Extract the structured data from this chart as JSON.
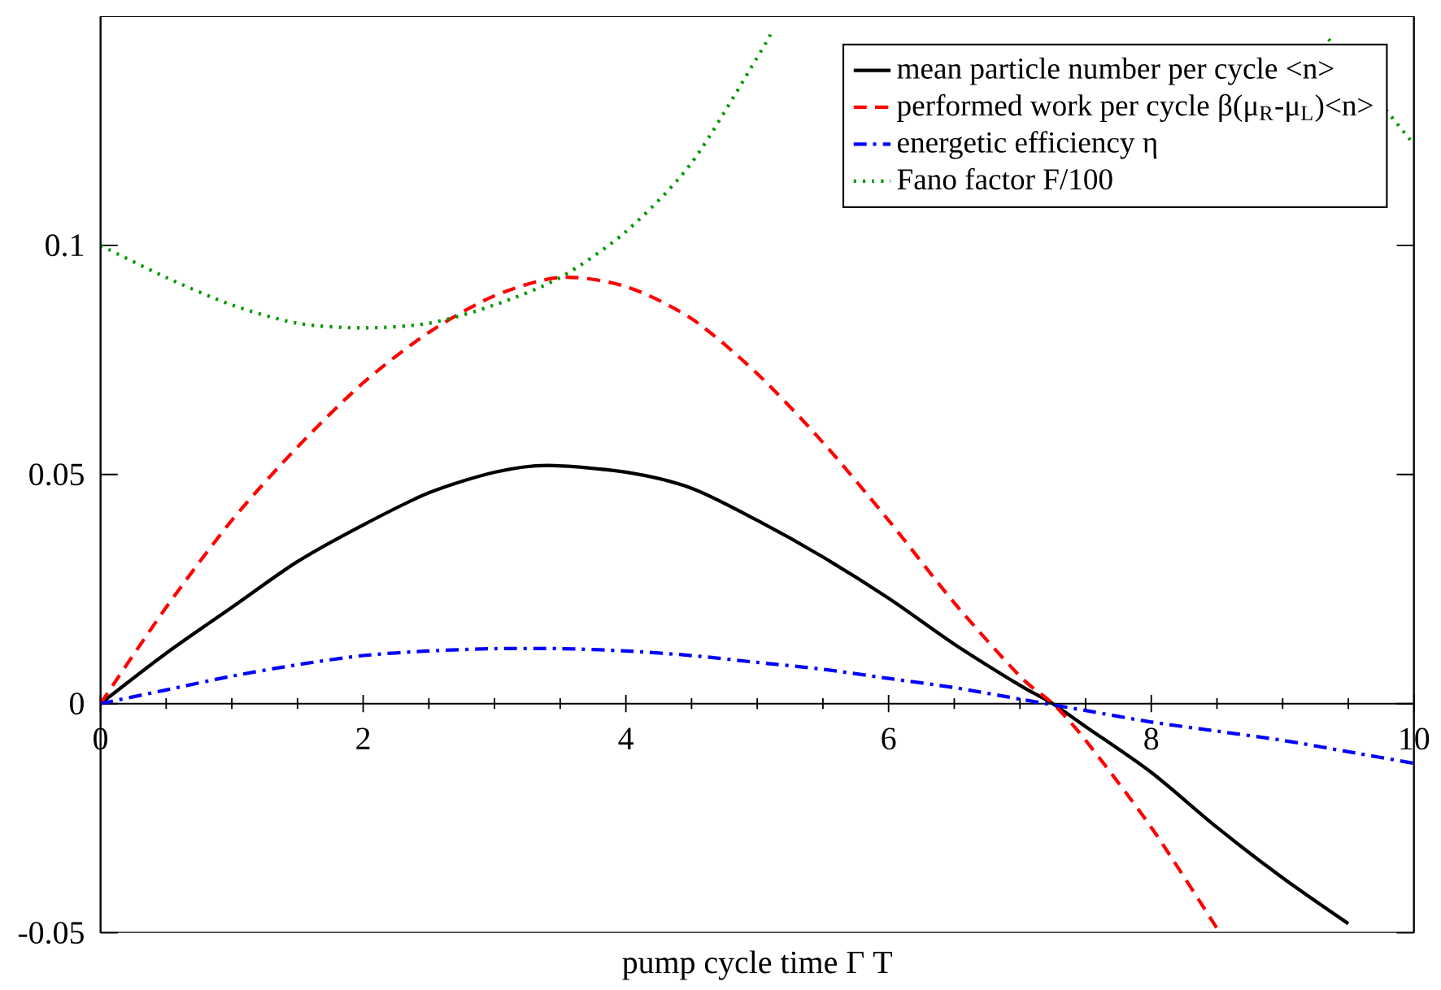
{
  "chart_data": {
    "type": "line",
    "xlabel": "pump cycle time Γ T",
    "xlim": [
      0,
      10
    ],
    "ylim": [
      -0.05,
      0.15
    ],
    "xticks": [
      0,
      2,
      4,
      6,
      8,
      10
    ],
    "yticks": [
      -0.05,
      0,
      0.05,
      0.1
    ],
    "legend": "top right",
    "grid": false,
    "series": [
      {
        "name": "mean particle number per cycle <n>",
        "color": "#000000",
        "line_style": "solid",
        "x": [
          0,
          0.5,
          1,
          1.5,
          2,
          2.5,
          3,
          3.4,
          4,
          4.5,
          5,
          5.5,
          6,
          6.5,
          7,
          7.25,
          7.5,
          8,
          8.5,
          9,
          9.5
        ],
        "values": [
          0,
          0.011,
          0.021,
          0.031,
          0.039,
          0.046,
          0.0505,
          0.052,
          0.0505,
          0.047,
          0.04,
          0.032,
          0.023,
          0.013,
          0.004,
          0,
          -0.005,
          -0.015,
          -0.027,
          -0.038,
          -0.048
        ]
      },
      {
        "name": "performed work per cycle β(μ$_{R}$-μ$_{L}$)<n>",
        "color": "#ff0000",
        "line_style": "dashed",
        "x": [
          0,
          0.5,
          1,
          1.5,
          2,
          2.5,
          3,
          3.5,
          4,
          4.5,
          5,
          5.5,
          6,
          6.5,
          7,
          7.25,
          7.5,
          8,
          8.5
        ],
        "values": [
          0,
          0.021,
          0.04,
          0.056,
          0.07,
          0.081,
          0.089,
          0.093,
          0.091,
          0.084,
          0.072,
          0.057,
          0.04,
          0.022,
          0.006,
          0,
          -0.008,
          -0.027,
          -0.049
        ]
      },
      {
        "name": "energetic efficiency η",
        "color": "#0000ff",
        "line_style": "dashdot",
        "x": [
          0,
          0.5,
          1,
          1.5,
          2,
          2.5,
          3,
          3.5,
          4,
          4.5,
          5,
          5.5,
          6,
          6.5,
          7,
          7.5,
          8,
          8.5,
          9,
          9.5,
          10
        ],
        "values": [
          0,
          0.003,
          0.006,
          0.0085,
          0.0105,
          0.0115,
          0.012,
          0.012,
          0.0115,
          0.0105,
          0.009,
          0.0075,
          0.0055,
          0.0035,
          0.001,
          -0.0015,
          -0.004,
          -0.006,
          -0.008,
          -0.0105,
          -0.013
        ]
      },
      {
        "name": "Fano factor F/100",
        "color": "#009900",
        "line_style": "dotted",
        "x": [
          0,
          0.5,
          1,
          1.5,
          2,
          2.5,
          3,
          3.5,
          4,
          4.5,
          5,
          5.1,
          7,
          9.35,
          10
        ],
        "values": [
          0.1,
          0.093,
          0.087,
          0.083,
          0.082,
          0.083,
          0.087,
          0.093,
          0.103,
          0.118,
          0.141,
          0.146,
          null,
          0.145,
          0.122
        ]
      }
    ]
  }
}
